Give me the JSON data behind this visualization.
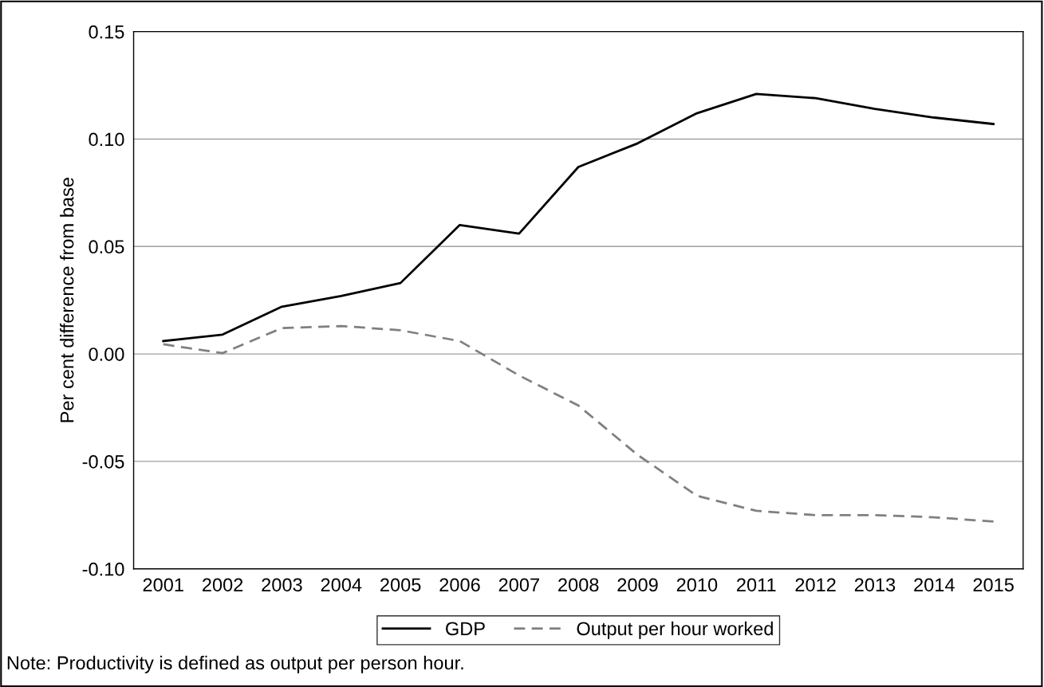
{
  "chart_data": {
    "type": "line",
    "ylabel": "Per cent difference from base",
    "categories": [
      "2001",
      "2002",
      "2003",
      "2004",
      "2005",
      "2006",
      "2007",
      "2008",
      "2009",
      "2010",
      "2011",
      "2012",
      "2013",
      "2014",
      "2015"
    ],
    "series": [
      {
        "name": "GDP",
        "color": "#000000",
        "line_style": "solid",
        "values": [
          0.006,
          0.009,
          0.022,
          0.027,
          0.033,
          0.06,
          0.056,
          0.087,
          0.098,
          0.112,
          0.121,
          0.119,
          0.114,
          0.11,
          0.107
        ]
      },
      {
        "name": "Output per hour worked",
        "color": "#808080",
        "line_style": "dashed",
        "values": [
          0.0045,
          0.0004,
          0.012,
          0.013,
          0.011,
          0.006,
          -0.01,
          -0.024,
          -0.047,
          -0.066,
          -0.073,
          -0.075,
          -0.075,
          -0.076,
          -0.078
        ]
      }
    ],
    "ylim": [
      -0.1,
      0.15
    ],
    "yticks": [
      {
        "value": -0.1,
        "label": "-0.10"
      },
      {
        "value": -0.05,
        "label": "-0.05"
      },
      {
        "value": 0,
        "label": "0.00"
      },
      {
        "value": 0.05,
        "label": "0.05"
      },
      {
        "value": 0.1,
        "label": "0.10"
      },
      {
        "value": 0.15,
        "label": "0.15"
      }
    ],
    "grid": "y",
    "legend": "bottom",
    "marker": "none",
    "annotations": [
      "Note: Productivity is defined as output per person hour."
    ]
  }
}
